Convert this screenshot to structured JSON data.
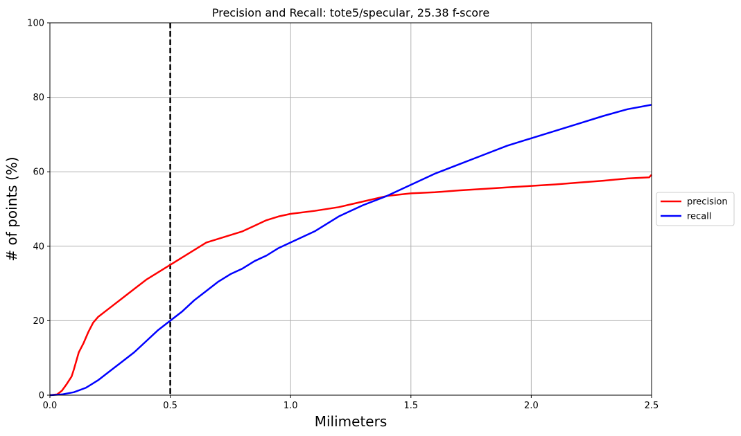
{
  "chart_data": {
    "type": "line",
    "title": "Precision and Recall: tote5/specular, 25.38 f-score",
    "xlabel": "Milimeters",
    "ylabel": "# of points (%)",
    "xlim": [
      0.0,
      2.5
    ],
    "ylim": [
      0,
      100
    ],
    "x_ticks": [
      "0.0",
      "0.5",
      "1.0",
      "1.5",
      "2.0",
      "2.5"
    ],
    "y_ticks": [
      "0",
      "20",
      "40",
      "60",
      "80",
      "100"
    ],
    "grid": true,
    "legend_position": "center-right-outside",
    "threshold_line": {
      "x": 0.5,
      "style": "dashed",
      "color": "#000000"
    },
    "series": [
      {
        "name": "precision",
        "color": "#ff0000",
        "x": [
          0.0,
          0.03,
          0.05,
          0.07,
          0.09,
          0.1,
          0.12,
          0.14,
          0.16,
          0.18,
          0.2,
          0.25,
          0.3,
          0.35,
          0.4,
          0.45,
          0.5,
          0.55,
          0.6,
          0.65,
          0.7,
          0.75,
          0.8,
          0.85,
          0.9,
          0.95,
          1.0,
          1.1,
          1.2,
          1.3,
          1.4,
          1.5,
          1.6,
          1.7,
          1.8,
          1.9,
          2.0,
          2.1,
          2.2,
          2.3,
          2.4,
          2.49,
          2.5
        ],
        "values": [
          0,
          0.2,
          1.2,
          3.0,
          5.0,
          7.0,
          11.5,
          14.0,
          17.0,
          19.5,
          21.0,
          23.5,
          26.0,
          28.5,
          31.0,
          33.0,
          35.0,
          37.0,
          39.0,
          41.0,
          42.0,
          43.0,
          44.0,
          45.5,
          47.0,
          48.0,
          48.7,
          49.5,
          50.5,
          52.0,
          53.5,
          54.2,
          54.5,
          55.0,
          55.4,
          55.8,
          56.2,
          56.6,
          57.1,
          57.6,
          58.2,
          58.5,
          59.2
        ]
      },
      {
        "name": "recall",
        "color": "#0000ff",
        "x": [
          0.0,
          0.05,
          0.1,
          0.15,
          0.2,
          0.25,
          0.3,
          0.35,
          0.4,
          0.45,
          0.5,
          0.55,
          0.6,
          0.65,
          0.7,
          0.75,
          0.8,
          0.85,
          0.9,
          0.95,
          1.0,
          1.1,
          1.2,
          1.3,
          1.4,
          1.5,
          1.6,
          1.7,
          1.8,
          1.9,
          2.0,
          2.1,
          2.2,
          2.3,
          2.4,
          2.5
        ],
        "values": [
          0,
          0.2,
          0.8,
          2.0,
          4.0,
          6.5,
          9.0,
          11.5,
          14.5,
          17.5,
          20.0,
          22.5,
          25.5,
          28.0,
          30.5,
          32.5,
          34.0,
          36.0,
          37.5,
          39.5,
          41.0,
          44.0,
          48.0,
          51.0,
          53.5,
          56.5,
          59.5,
          62.0,
          64.5,
          67.0,
          69.0,
          71.0,
          73.0,
          75.0,
          76.8,
          78.0
        ]
      }
    ]
  }
}
